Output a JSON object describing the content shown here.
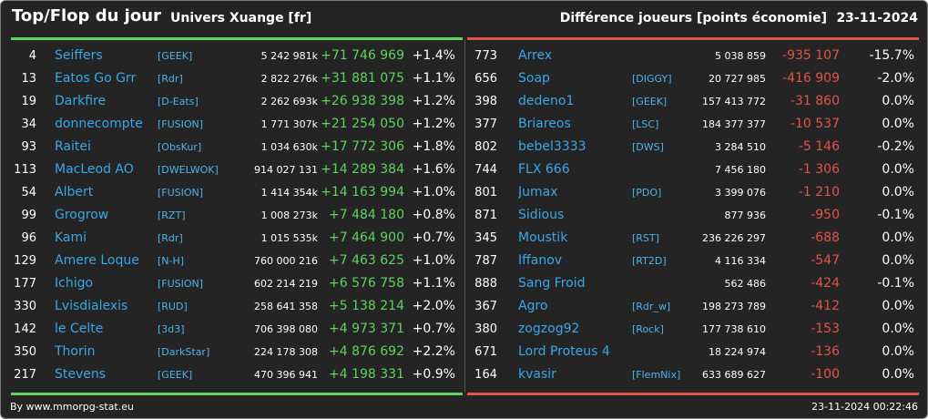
{
  "header": {
    "title": "Top/Flop du jour",
    "universe": "Univers Xuange [fr]",
    "metric": "Différence joueurs [points économie]",
    "date": "23-11-2024"
  },
  "colors": {
    "background": "#242424",
    "gain": "#5fd35f",
    "loss": "#e2544a",
    "player": "#3aa7e8",
    "alliance": "#4fb3ea",
    "text": "#ffffff"
  },
  "top": [
    {
      "rank": "4",
      "name": "Seiffers",
      "alliance": "[GEEK]",
      "points": "5 242 981k",
      "diff": "+71 746 969",
      "pct": "+1.4%"
    },
    {
      "rank": "13",
      "name": "Eatos Go Grr",
      "alliance": "[Rdr]",
      "points": "2 822 276k",
      "diff": "+31 881 075",
      "pct": "+1.1%"
    },
    {
      "rank": "19",
      "name": "Darkfire",
      "alliance": "[D-Eats]",
      "points": "2 262 693k",
      "diff": "+26 938 398",
      "pct": "+1.2%"
    },
    {
      "rank": "34",
      "name": "donnecompte",
      "alliance": "[FUSION]",
      "points": "1 771 307k",
      "diff": "+21 254 050",
      "pct": "+1.2%"
    },
    {
      "rank": "93",
      "name": "Raitei",
      "alliance": "[ObsKur]",
      "points": "1 034 630k",
      "diff": "+17 772 306",
      "pct": "+1.8%"
    },
    {
      "rank": "113",
      "name": "MacLeod AO",
      "alliance": "[DWELWOK]",
      "points": "914 027 131",
      "diff": "+14 289 384",
      "pct": "+1.6%"
    },
    {
      "rank": "54",
      "name": "Albert",
      "alliance": "[FUSION]",
      "points": "1 414 354k",
      "diff": "+14 163 994",
      "pct": "+1.0%"
    },
    {
      "rank": "99",
      "name": "Grogrow",
      "alliance": "[RZT]",
      "points": "1 008 273k",
      "diff": "+7 484 180",
      "pct": "+0.8%"
    },
    {
      "rank": "96",
      "name": "Kami",
      "alliance": "[Rdr]",
      "points": "1 015 535k",
      "diff": "+7 464 900",
      "pct": "+0.7%"
    },
    {
      "rank": "129",
      "name": "Amere Loque",
      "alliance": "[N-H]",
      "points": "760 000 216",
      "diff": "+7 463 625",
      "pct": "+1.0%"
    },
    {
      "rank": "177",
      "name": "Ichigo",
      "alliance": "[FUSION]",
      "points": "602 214 219",
      "diff": "+6 576 758",
      "pct": "+1.1%"
    },
    {
      "rank": "330",
      "name": "Lvisdialexis",
      "alliance": "[RUD]",
      "points": "258 641 358",
      "diff": "+5 138 214",
      "pct": "+2.0%"
    },
    {
      "rank": "142",
      "name": "le Celte",
      "alliance": "[3d3]",
      "points": "706 398 080",
      "diff": "+4 973 371",
      "pct": "+0.7%"
    },
    {
      "rank": "350",
      "name": "Thorin",
      "alliance": "[DarkStar]",
      "points": "224 178 308",
      "diff": "+4 876 692",
      "pct": "+2.2%"
    },
    {
      "rank": "217",
      "name": "Stevens",
      "alliance": "[GEEK]",
      "points": "470 396 941",
      "diff": "+4 198 331",
      "pct": "+0.9%"
    }
  ],
  "flop": [
    {
      "rank": "773",
      "name": "Arrex",
      "alliance": "",
      "points": "5 038 859",
      "diff": "-935 107",
      "pct": "-15.7%"
    },
    {
      "rank": "656",
      "name": "Soap",
      "alliance": "[DIGGY]",
      "points": "20 727 985",
      "diff": "-416 909",
      "pct": "-2.0%"
    },
    {
      "rank": "398",
      "name": "dedeno1",
      "alliance": "[GEEK]",
      "points": "157 413 772",
      "diff": "-31 860",
      "pct": "0.0%"
    },
    {
      "rank": "377",
      "name": "Briareos",
      "alliance": "[LSC]",
      "points": "184 377 377",
      "diff": "-10 537",
      "pct": "0.0%"
    },
    {
      "rank": "802",
      "name": "bebel3333",
      "alliance": "[DWS]",
      "points": "3 284 510",
      "diff": "-5 146",
      "pct": "-0.2%"
    },
    {
      "rank": "744",
      "name": "FLX 666",
      "alliance": "",
      "points": "7 456 180",
      "diff": "-1 306",
      "pct": "0.0%"
    },
    {
      "rank": "801",
      "name": "Jumax",
      "alliance": "[PDO]",
      "points": "3 399 076",
      "diff": "-1 210",
      "pct": "0.0%"
    },
    {
      "rank": "871",
      "name": "Sidious",
      "alliance": "",
      "points": "877 936",
      "diff": "-950",
      "pct": "-0.1%"
    },
    {
      "rank": "345",
      "name": "Moustik",
      "alliance": "[RST]",
      "points": "236 226 297",
      "diff": "-688",
      "pct": "0.0%"
    },
    {
      "rank": "787",
      "name": "Iffanov",
      "alliance": "[RT2D]",
      "points": "4 116 334",
      "diff": "-547",
      "pct": "0.0%"
    },
    {
      "rank": "888",
      "name": "Sang Froid",
      "alliance": "",
      "points": "562 486",
      "diff": "-424",
      "pct": "-0.1%"
    },
    {
      "rank": "367",
      "name": "Agro",
      "alliance": "[Rdr_w]",
      "points": "198 273 789",
      "diff": "-412",
      "pct": "0.0%"
    },
    {
      "rank": "380",
      "name": "zogzog92",
      "alliance": "[Rock]",
      "points": "177 738 610",
      "diff": "-153",
      "pct": "0.0%"
    },
    {
      "rank": "671",
      "name": "Lord Proteus 4",
      "alliance": "",
      "points": "18 224 974",
      "diff": "-136",
      "pct": "0.0%"
    },
    {
      "rank": "164",
      "name": "kvasir",
      "alliance": "[FlemNix]",
      "points": "633 689 627",
      "diff": "-100",
      "pct": "0.0%"
    }
  ],
  "footer": {
    "source": "By www.mmorpg-stat.eu",
    "timestamp": "23-11-2024 00:22:46"
  }
}
